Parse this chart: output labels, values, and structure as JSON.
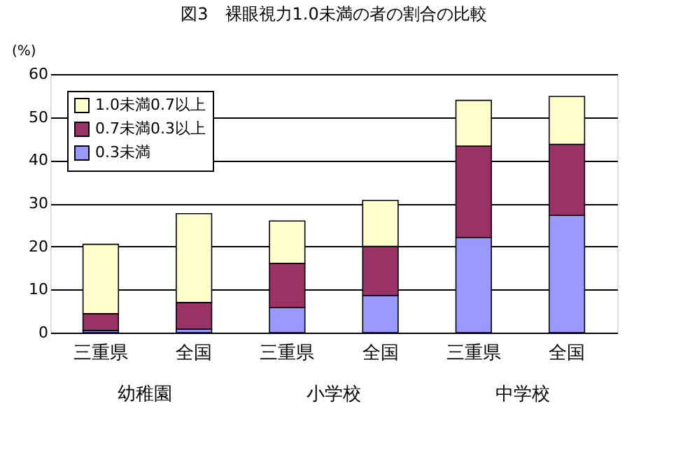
{
  "chart_data": {
    "type": "bar",
    "title": "図3　裸眼視力1.0未満の者の割合の比較",
    "ylabel": "(%)",
    "categories": [
      "三重県",
      "全国",
      "三重県",
      "全国",
      "三重県",
      "全国"
    ],
    "stacked": true,
    "series": [
      {
        "name": "0.3未満",
        "color": "#9999ff",
        "values": [
          0.5,
          0.8,
          5.8,
          8.6,
          22.1,
          27.2
        ]
      },
      {
        "name": "0.7未満0.3以上",
        "color": "#993366",
        "values": [
          3.9,
          6.2,
          10.3,
          11.4,
          21.2,
          16.5
        ]
      },
      {
        "name": "1.0未満0.7以上",
        "color": "#ffffcc",
        "values": [
          16.1,
          20.6,
          9.8,
          10.7,
          10.6,
          11.1
        ]
      }
    ],
    "annotations": [
      "幼稚園",
      "小学校",
      "中学校"
    ],
    "ylim": [
      0,
      60
    ],
    "yticks": [
      0,
      10,
      20,
      30,
      40,
      50,
      60
    ],
    "grid": "y",
    "legend": "top left"
  }
}
